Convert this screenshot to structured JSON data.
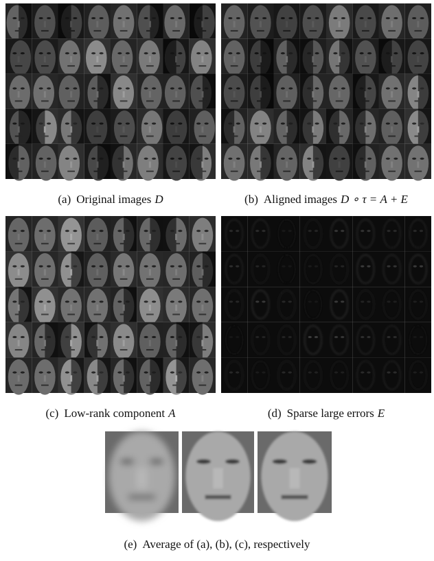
{
  "panels": [
    {
      "label": "(a)",
      "text": "Original images",
      "math": "D"
    },
    {
      "label": "(b)",
      "text": "Aligned images",
      "math": "D ∘ τ = A + E"
    },
    {
      "label": "(c)",
      "text": "Low-rank component",
      "math": "A"
    },
    {
      "label": "(d)",
      "text": "Sparse large errors",
      "math": "E"
    }
  ],
  "average": {
    "label": "(e)",
    "text": "Average of (a), (b), (c), respectively"
  }
}
